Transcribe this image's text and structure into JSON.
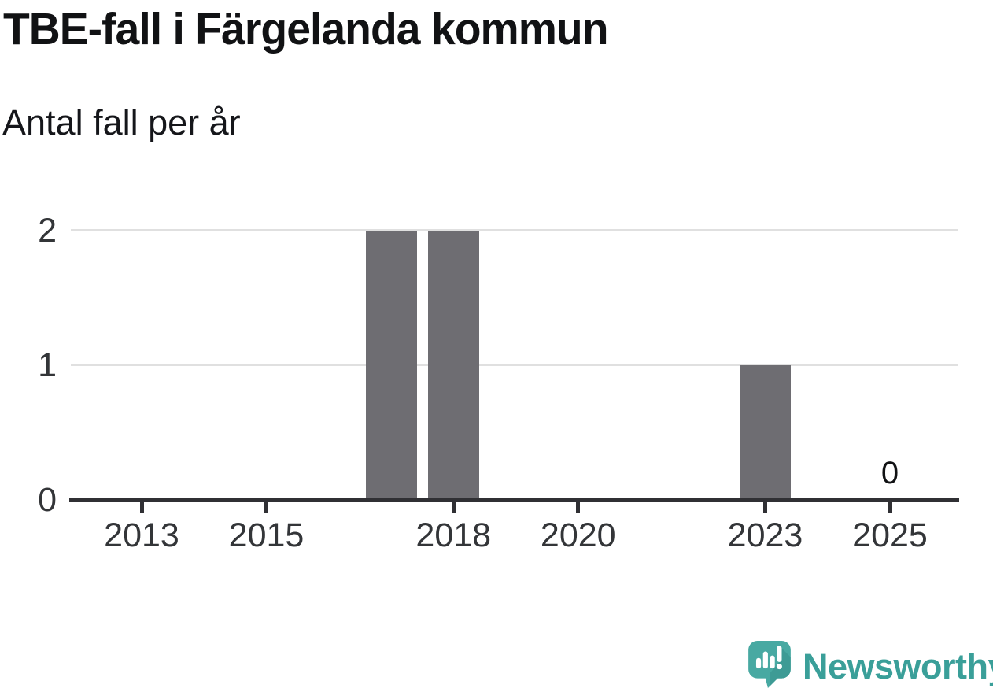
{
  "header": {
    "title": "TBE-fall i Färgelanda kommun",
    "subtitle": "Antal fall per år"
  },
  "chart_data": {
    "type": "bar",
    "title": "TBE-fall i Färgelanda kommun",
    "subtitle": "Antal fall per år",
    "categories": [
      2012,
      2013,
      2014,
      2015,
      2016,
      2017,
      2018,
      2019,
      2020,
      2021,
      2022,
      2023,
      2024,
      2025
    ],
    "values": [
      0,
      0,
      0,
      0,
      0,
      2,
      2,
      0,
      0,
      0,
      0,
      1,
      0,
      0
    ],
    "xticks": [
      2013,
      2015,
      2018,
      2020,
      2023,
      2025
    ],
    "yticks": [
      0,
      1,
      2
    ],
    "ylim": [
      0,
      2
    ],
    "xlabel": "",
    "ylabel": "",
    "grid": "horizontal",
    "legend_position": "none",
    "bar_color": "#6e6d72",
    "gridline_color": "#e0e0e0",
    "axis_color": "#303034",
    "value_labels": [
      {
        "year": 2025,
        "text": "0"
      }
    ]
  },
  "footer": {
    "brand": "Newsworthy",
    "brand_color": "#3a9f99",
    "icon": "newsworthy-logo-icon",
    "icon_color_light": "#48a9a2",
    "icon_color_dark": "#3e9b95"
  }
}
